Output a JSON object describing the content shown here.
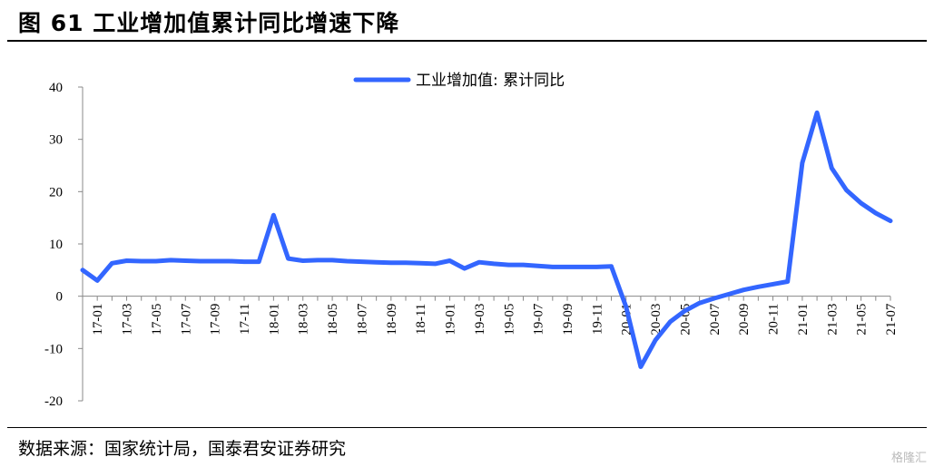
{
  "header": {
    "title": "图 61  工业增加值累计同比增速下降"
  },
  "footer": {
    "source": "数据来源：国家统计局，国泰君安证券研究",
    "watermark": "格隆汇"
  },
  "chart_data": {
    "type": "line",
    "title": "",
    "xlabel": "",
    "ylabel": "",
    "ylim": [
      -20,
      40
    ],
    "yticks": [
      -20,
      -10,
      0,
      10,
      20,
      30,
      40
    ],
    "grid": false,
    "legend_position": "top-center",
    "x": [
      "16-12",
      "17-01",
      "17-02",
      "17-03",
      "17-04",
      "17-05",
      "17-06",
      "17-07",
      "17-08",
      "17-09",
      "17-10",
      "17-11",
      "17-12",
      "18-01",
      "18-02",
      "18-03",
      "18-04",
      "18-05",
      "18-06",
      "18-07",
      "18-08",
      "18-09",
      "18-10",
      "18-11",
      "18-12",
      "19-01",
      "19-02",
      "19-03",
      "19-04",
      "19-05",
      "19-06",
      "19-07",
      "19-08",
      "19-09",
      "19-10",
      "19-11",
      "19-12",
      "20-01",
      "20-02",
      "20-03",
      "20-04",
      "20-05",
      "20-06",
      "20-07",
      "20-08",
      "20-09",
      "20-10",
      "20-11",
      "20-12",
      "21-01",
      "21-02",
      "21-03",
      "21-04",
      "21-05",
      "21-06",
      "21-07"
    ],
    "xtick_labels": [
      "17-01",
      "17-03",
      "17-05",
      "17-07",
      "17-09",
      "17-11",
      "18-01",
      "18-03",
      "18-05",
      "18-07",
      "18-09",
      "18-11",
      "19-01",
      "19-03",
      "19-05",
      "19-07",
      "19-09",
      "19-11",
      "20-01",
      "20-03",
      "20-05",
      "20-07",
      "20-09",
      "20-11",
      "21-01",
      "21-03",
      "21-05",
      "21-07"
    ],
    "series": [
      {
        "name": "工业增加值: 累计同比",
        "color": "#3366ff",
        "values": [
          5.0,
          3.0,
          6.3,
          6.8,
          6.7,
          6.7,
          6.9,
          6.8,
          6.7,
          6.7,
          6.7,
          6.6,
          6.6,
          15.5,
          7.2,
          6.8,
          6.9,
          6.9,
          6.7,
          6.6,
          6.5,
          6.4,
          6.4,
          6.3,
          6.2,
          6.8,
          5.3,
          6.5,
          6.2,
          6.0,
          6.0,
          5.8,
          5.6,
          5.6,
          5.6,
          5.6,
          5.7,
          -2.0,
          -13.5,
          -8.4,
          -4.9,
          -2.8,
          -1.3,
          -0.4,
          0.4,
          1.2,
          1.8,
          2.3,
          2.8,
          25.5,
          35.1,
          24.5,
          20.3,
          17.8,
          15.9,
          14.4
        ]
      }
    ]
  }
}
